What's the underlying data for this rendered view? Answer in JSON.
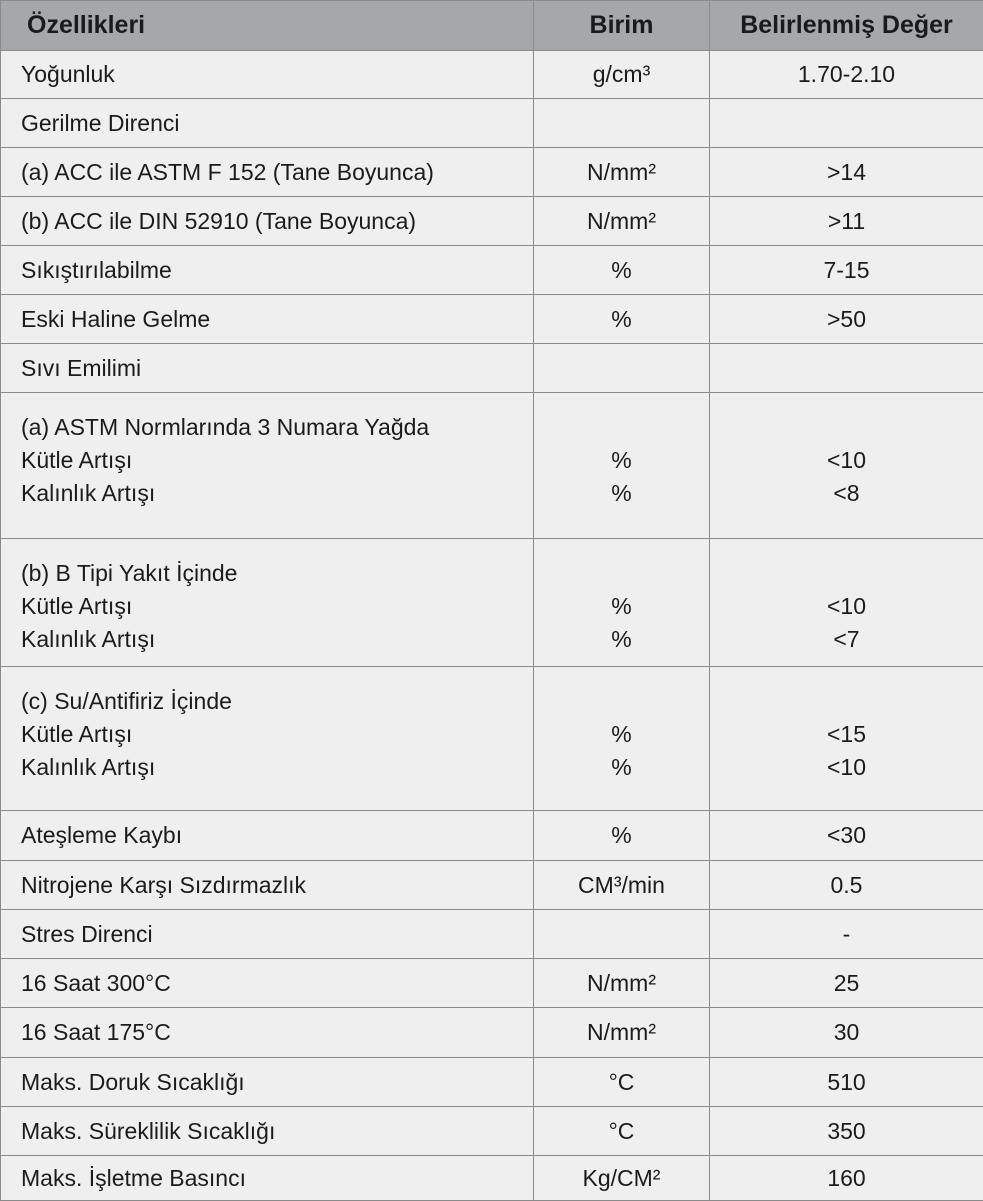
{
  "header": {
    "property": "Özellikleri",
    "unit": "Birim",
    "value": "Belirlenmiş Değer"
  },
  "colors": {
    "header_bg": "#a5a8aa",
    "body_bg": "#efefef",
    "border": "#8a8a8a"
  },
  "rows": [
    {
      "property": [
        "Yoğunluk"
      ],
      "unit": [
        "g/cm³"
      ],
      "value": [
        "1.70-2.10"
      ]
    },
    {
      "property": [
        "Gerilme Direnci"
      ],
      "unit": [
        ""
      ],
      "value": [
        ""
      ]
    },
    {
      "property": [
        "(a) ACC ile ASTM F 152 (Tane Boyunca)"
      ],
      "unit": [
        "N/mm²"
      ],
      "value": [
        ">14"
      ]
    },
    {
      "property": [
        "(b) ACC ile DIN 52910 (Tane Boyunca)"
      ],
      "unit": [
        "N/mm²"
      ],
      "value": [
        ">11"
      ]
    },
    {
      "property": [
        "Sıkıştırılabilme"
      ],
      "unit": [
        "%"
      ],
      "value": [
        "7-15"
      ]
    },
    {
      "property": [
        "Eski Haline Gelme"
      ],
      "unit": [
        "%"
      ],
      "value": [
        ">50"
      ]
    },
    {
      "property": [
        "Sıvı Emilimi"
      ],
      "unit": [
        ""
      ],
      "value": [
        ""
      ]
    },
    {
      "property": [
        "(a) ASTM Normlarında 3 Numara Yağda",
        "Kütle Artışı",
        "Kalınlık Artışı"
      ],
      "unit": [
        "",
        "%",
        "%"
      ],
      "value": [
        "",
        "<10",
        "<8"
      ]
    },
    {
      "property": [
        "(b) B Tipi Yakıt İçinde",
        "Kütle Artışı",
        "Kalınlık Artışı"
      ],
      "unit": [
        "",
        "%",
        "%"
      ],
      "value": [
        "",
        "<10",
        "<7"
      ]
    },
    {
      "property": [
        "(c) Su/Antifiriz İçinde",
        "Kütle Artışı",
        "Kalınlık Artışı"
      ],
      "unit": [
        "",
        "%",
        "%"
      ],
      "value": [
        "",
        "<15",
        "<10"
      ]
    },
    {
      "property": [
        "Ateşleme Kaybı"
      ],
      "unit": [
        "%"
      ],
      "value": [
        "<30"
      ]
    },
    {
      "property": [
        "Nitrojene Karşı Sızdırmazlık"
      ],
      "unit": [
        "CM³/min"
      ],
      "value": [
        "0.5"
      ]
    },
    {
      "property": [
        "Stres Direnci"
      ],
      "unit": [
        ""
      ],
      "value": [
        "-"
      ]
    },
    {
      "property": [
        "16 Saat 300°C"
      ],
      "unit": [
        "N/mm²"
      ],
      "value": [
        "25"
      ]
    },
    {
      "property": [
        "16 Saat 175°C"
      ],
      "unit": [
        "N/mm²"
      ],
      "value": [
        "30"
      ]
    },
    {
      "property": [
        "Maks. Doruk Sıcaklığı"
      ],
      "unit": [
        "°C"
      ],
      "value": [
        "510"
      ]
    },
    {
      "property": [
        "Maks. Süreklilik Sıcaklığı"
      ],
      "unit": [
        "°C"
      ],
      "value": [
        "350"
      ]
    },
    {
      "property": [
        "Maks. İşletme Basıncı"
      ],
      "unit": [
        "Kg/CM²"
      ],
      "value": [
        "160"
      ]
    }
  ]
}
